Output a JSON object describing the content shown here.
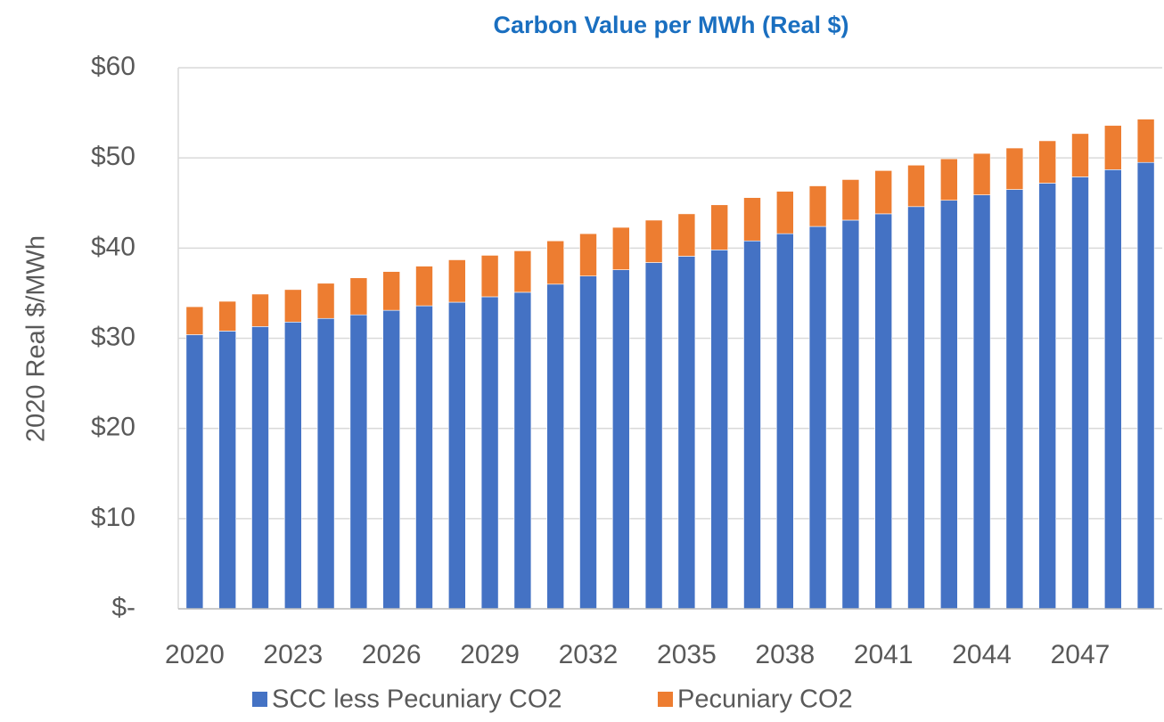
{
  "chart_data": {
    "type": "stacked_bar",
    "title": "Carbon Value per MWh (Real $)",
    "y_label": "2020 Real $/MWh",
    "categories": [
      "2020",
      null,
      null,
      "2023",
      null,
      null,
      "2026",
      null,
      null,
      "2029",
      null,
      null,
      "2032",
      null,
      null,
      "2035",
      null,
      null,
      "2038",
      null,
      null,
      "2041",
      null,
      null,
      "2044",
      null,
      null,
      "2047",
      null,
      null
    ],
    "series": [
      {
        "name": "SCC less Pecuniary CO2",
        "color": "#4472c4",
        "values": [
          30.4,
          30.8,
          31.3,
          31.8,
          32.2,
          32.6,
          33.1,
          33.6,
          34.0,
          34.6,
          35.1,
          36.0,
          36.9,
          37.6,
          38.4,
          39.1,
          39.8,
          40.8,
          41.6,
          42.4,
          43.1,
          43.8,
          44.6,
          45.3,
          45.9,
          46.5,
          47.2,
          47.9,
          48.7,
          49.5
        ]
      },
      {
        "name": "Pecuniary CO2",
        "color": "#ed7d31",
        "values": [
          3.1,
          3.3,
          3.6,
          3.6,
          3.9,
          4.1,
          4.3,
          4.4,
          4.7,
          4.6,
          4.6,
          4.8,
          4.7,
          4.7,
          4.7,
          4.7,
          5.0,
          4.8,
          4.7,
          4.5,
          4.5,
          4.8,
          4.6,
          4.6,
          4.6,
          4.6,
          4.7,
          4.8,
          4.9,
          4.8
        ]
      }
    ],
    "ylim": [
      0,
      60
    ],
    "yticks": [
      {
        "value": 0,
        "label": "$-"
      },
      {
        "value": 10,
        "label": "$10"
      },
      {
        "value": 20,
        "label": "$20"
      },
      {
        "value": 30,
        "label": "$30"
      },
      {
        "value": 40,
        "label": "$40"
      },
      {
        "value": 50,
        "label": "$50"
      },
      {
        "value": 60,
        "label": "$60"
      }
    ],
    "grid": true,
    "legend": "bottom"
  }
}
